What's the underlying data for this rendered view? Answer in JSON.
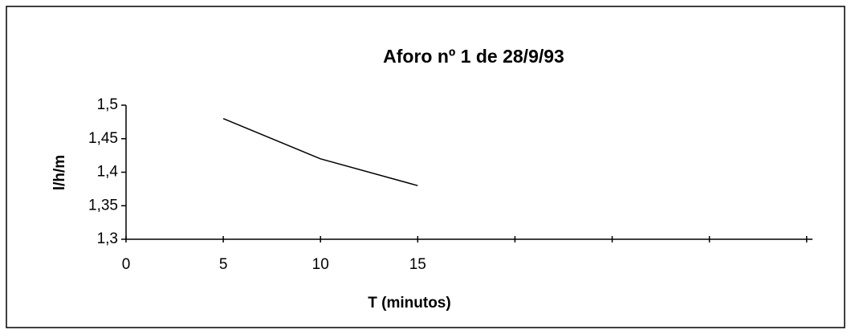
{
  "chart_data": {
    "type": "line",
    "title": "Aforo nº 1 de 28/9/93",
    "xlabel": "T (minutos)",
    "ylabel": "l/h/m",
    "x": [
      5,
      10,
      15
    ],
    "series": [
      {
        "color": "#000000",
        "values": [
          1.48,
          1.42,
          1.38
        ]
      }
    ],
    "xlim": [
      0,
      35.3
    ],
    "xticks": [
      0,
      5,
      10,
      15
    ],
    "xminor_ticks": [
      20,
      25,
      30,
      35
    ],
    "ylim": [
      1.3,
      1.5
    ],
    "yticks": [
      {
        "value": 1.3,
        "label": "1,3"
      },
      {
        "value": 1.35,
        "label": "1,35"
      },
      {
        "value": 1.4,
        "label": "1,4"
      },
      {
        "value": 1.45,
        "label": "1,45"
      },
      {
        "value": 1.5,
        "label": "1,5"
      }
    ],
    "grid": false
  }
}
